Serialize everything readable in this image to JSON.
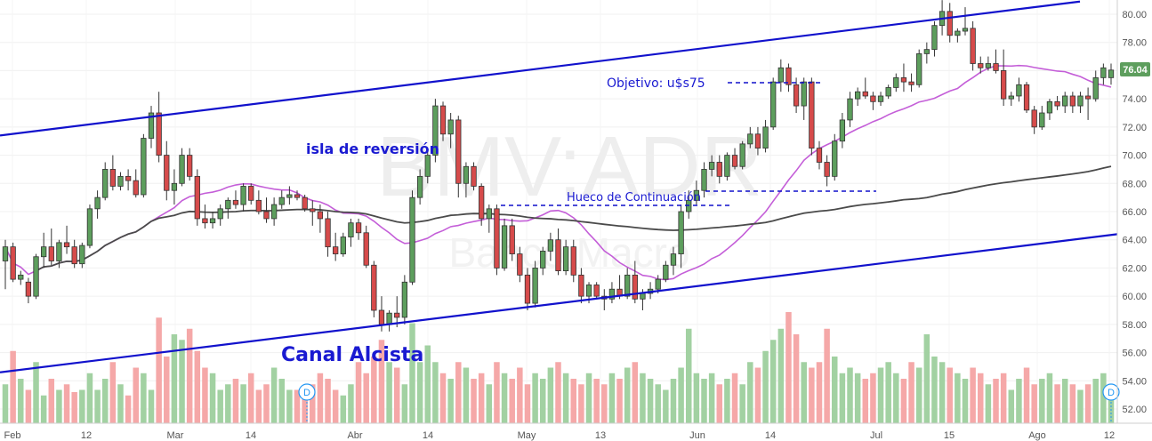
{
  "watermark": {
    "symbol": "BMV:ADR",
    "name": "Banco Macro"
  },
  "chart_data": {
    "type": "candlestick",
    "y_range": [
      51,
      81
    ],
    "y_axis_ticks": [
      52,
      54,
      56,
      58,
      60,
      62,
      64,
      66,
      68,
      70,
      72,
      74,
      76,
      78,
      80
    ],
    "x_axis_ticks": [
      "Feb",
      "12",
      "Mar",
      "14",
      "Abr",
      "14",
      "May",
      "13",
      "Jun",
      "14",
      "Jul",
      "15",
      "Ago",
      "12"
    ],
    "last_price": "76.04",
    "colors": {
      "up": "#5d9e5d",
      "down": "#d64b4b",
      "vol_up": "#9dcf9d",
      "vol_down": "#f4a3a3",
      "ma_fast": "#c45ed8",
      "ma_slow": "#4a4a4a",
      "trend": "#1111cc",
      "last_badge": "#5d9e5d"
    },
    "candles": [
      [
        62.5,
        64.0,
        60.5,
        63.5
      ],
      [
        63.5,
        63.8,
        61.0,
        61.2
      ],
      [
        61.2,
        61.8,
        60.8,
        61.5
      ],
      [
        61.0,
        61.3,
        59.5,
        60.0
      ],
      [
        60.0,
        63.0,
        59.8,
        62.8
      ],
      [
        62.8,
        64.5,
        62.0,
        63.5
      ],
      [
        63.5,
        64.8,
        62.2,
        62.5
      ],
      [
        62.5,
        64.0,
        62.0,
        63.8
      ],
      [
        63.8,
        65.0,
        63.0,
        63.5
      ],
      [
        63.5,
        64.0,
        62.0,
        62.3
      ],
      [
        62.3,
        63.8,
        62.0,
        63.6
      ],
      [
        63.6,
        66.5,
        63.4,
        66.2
      ],
      [
        66.2,
        67.5,
        65.5,
        67.0
      ],
      [
        67.0,
        69.5,
        66.8,
        69.0
      ],
      [
        69.0,
        70.0,
        67.5,
        67.8
      ],
      [
        67.8,
        68.8,
        67.5,
        68.5
      ],
      [
        68.5,
        69.0,
        67.5,
        68.2
      ],
      [
        68.2,
        69.0,
        67.0,
        67.2
      ],
      [
        67.2,
        71.5,
        67.0,
        71.2
      ],
      [
        71.2,
        73.5,
        70.5,
        73.0
      ],
      [
        73.0,
        74.5,
        69.5,
        70.0
      ],
      [
        70.0,
        71.0,
        66.8,
        67.5
      ],
      [
        67.5,
        69.0,
        66.5,
        68.0
      ],
      [
        68.0,
        70.5,
        67.8,
        70.0
      ],
      [
        70.0,
        70.5,
        68.2,
        68.5
      ],
      [
        68.5,
        69.0,
        65.0,
        65.5
      ],
      [
        65.5,
        66.5,
        64.8,
        65.2
      ],
      [
        65.2,
        66.0,
        64.8,
        65.5
      ],
      [
        65.5,
        66.5,
        65.0,
        66.2
      ],
      [
        66.2,
        67.0,
        65.5,
        66.8
      ],
      [
        66.8,
        67.5,
        66.2,
        66.5
      ],
      [
        66.5,
        68.0,
        66.0,
        67.8
      ],
      [
        67.8,
        68.0,
        66.5,
        66.8
      ],
      [
        66.8,
        67.5,
        65.8,
        66.0
      ],
      [
        66.0,
        67.0,
        65.2,
        65.5
      ],
      [
        65.5,
        67.0,
        65.0,
        66.5
      ],
      [
        66.5,
        67.5,
        66.2,
        67.0
      ],
      [
        67.0,
        67.8,
        66.5,
        67.2
      ],
      [
        67.2,
        67.5,
        66.8,
        67.0
      ],
      [
        67.0,
        67.2,
        66.0,
        66.2
      ],
      [
        66.2,
        66.8,
        65.0,
        66.0
      ],
      [
        66.0,
        66.5,
        64.5,
        65.5
      ],
      [
        65.5,
        66.0,
        62.8,
        63.5
      ],
      [
        63.5,
        64.5,
        62.5,
        63.0
      ],
      [
        63.0,
        64.5,
        62.8,
        64.2
      ],
      [
        64.2,
        65.5,
        63.5,
        65.2
      ],
      [
        65.2,
        65.5,
        64.0,
        64.5
      ],
      [
        64.5,
        65.0,
        62.0,
        62.2
      ],
      [
        62.2,
        62.5,
        58.5,
        59.0
      ],
      [
        59.0,
        60.0,
        57.5,
        58.0
      ],
      [
        58.0,
        59.0,
        57.5,
        58.8
      ],
      [
        58.8,
        60.0,
        57.8,
        58.5
      ],
      [
        58.5,
        61.5,
        58.0,
        61.0
      ],
      [
        61.0,
        67.5,
        60.8,
        67.0
      ],
      [
        67.0,
        69.0,
        66.5,
        68.5
      ],
      [
        68.5,
        70.5,
        68.0,
        70.0
      ],
      [
        70.0,
        74.0,
        69.5,
        73.5
      ],
      [
        73.5,
        73.8,
        71.0,
        71.5
      ],
      [
        71.5,
        73.0,
        70.5,
        72.5
      ],
      [
        72.5,
        72.8,
        67.0,
        68.0
      ],
      [
        68.0,
        69.5,
        67.0,
        69.2
      ],
      [
        69.2,
        69.5,
        67.5,
        67.8
      ],
      [
        67.8,
        68.0,
        65.0,
        65.5
      ],
      [
        65.5,
        66.5,
        64.5,
        66.2
      ],
      [
        66.2,
        66.5,
        61.5,
        62.0
      ],
      [
        62.0,
        65.5,
        61.8,
        65.0
      ],
      [
        65.0,
        65.5,
        62.5,
        63.0
      ],
      [
        63.0,
        63.5,
        61.0,
        61.5
      ],
      [
        61.5,
        62.0,
        59.0,
        59.5
      ],
      [
        59.5,
        62.5,
        59.2,
        62.0
      ],
      [
        62.0,
        63.5,
        61.5,
        63.2
      ],
      [
        63.2,
        64.5,
        62.5,
        64.0
      ],
      [
        64.0,
        64.8,
        61.5,
        61.8
      ],
      [
        61.8,
        64.0,
        61.5,
        63.5
      ],
      [
        63.5,
        64.0,
        61.0,
        61.5
      ],
      [
        61.5,
        62.0,
        59.5,
        60.0
      ],
      [
        60.0,
        61.0,
        59.5,
        60.8
      ],
      [
        60.8,
        61.0,
        59.8,
        60.0
      ],
      [
        60.0,
        60.5,
        59.0,
        59.8
      ],
      [
        59.8,
        61.0,
        59.5,
        60.5
      ],
      [
        60.5,
        61.5,
        59.8,
        60.0
      ],
      [
        60.0,
        62.0,
        59.8,
        61.5
      ],
      [
        61.5,
        62.5,
        59.5,
        59.8
      ],
      [
        59.8,
        60.5,
        59.0,
        60.2
      ],
      [
        60.2,
        61.0,
        59.8,
        60.5
      ],
      [
        60.5,
        61.5,
        60.2,
        61.2
      ],
      [
        61.2,
        62.5,
        61.0,
        62.2
      ],
      [
        62.2,
        63.5,
        61.5,
        63.0
      ],
      [
        63.0,
        66.5,
        62.0,
        66.0
      ],
      [
        66.0,
        67.5,
        65.5,
        66.8
      ],
      [
        66.8,
        68.2,
        66.5,
        67.5
      ],
      [
        67.5,
        69.5,
        67.0,
        69.0
      ],
      [
        69.0,
        70.0,
        68.5,
        69.5
      ],
      [
        69.5,
        70.0,
        68.0,
        68.5
      ],
      [
        68.5,
        70.2,
        68.2,
        70.0
      ],
      [
        70.0,
        70.5,
        69.0,
        69.2
      ],
      [
        69.2,
        71.0,
        69.0,
        70.8
      ],
      [
        70.8,
        72.0,
        70.5,
        71.5
      ],
      [
        71.5,
        72.0,
        70.0,
        70.5
      ],
      [
        70.5,
        72.5,
        70.2,
        72.0
      ],
      [
        72.0,
        75.5,
        71.8,
        75.2
      ],
      [
        75.2,
        76.8,
        74.5,
        76.2
      ],
      [
        76.2,
        76.5,
        74.5,
        75.0
      ],
      [
        75.0,
        75.5,
        73.0,
        73.5
      ],
      [
        73.5,
        75.5,
        72.5,
        75.2
      ],
      [
        75.2,
        75.5,
        70.0,
        70.5
      ],
      [
        70.5,
        71.0,
        69.0,
        69.5
      ],
      [
        69.5,
        70.0,
        67.8,
        68.5
      ],
      [
        68.5,
        71.5,
        68.2,
        71.0
      ],
      [
        71.0,
        73.0,
        70.5,
        72.5
      ],
      [
        72.5,
        74.5,
        72.0,
        74.0
      ],
      [
        74.0,
        74.8,
        73.5,
        74.5
      ],
      [
        74.5,
        75.5,
        74.0,
        74.2
      ],
      [
        74.2,
        74.5,
        73.2,
        73.8
      ],
      [
        73.8,
        74.5,
        73.5,
        74.2
      ],
      [
        74.2,
        75.0,
        74.0,
        74.8
      ],
      [
        74.8,
        75.8,
        74.5,
        75.5
      ],
      [
        75.5,
        76.5,
        74.5,
        75.2
      ],
      [
        75.2,
        75.8,
        74.5,
        75.0
      ],
      [
        75.0,
        77.5,
        74.8,
        77.2
      ],
      [
        77.2,
        78.0,
        76.5,
        77.5
      ],
      [
        77.5,
        79.5,
        77.0,
        79.2
      ],
      [
        79.2,
        81.0,
        78.5,
        80.2
      ],
      [
        80.2,
        80.8,
        78.0,
        78.5
      ],
      [
        78.5,
        79.0,
        78.0,
        78.8
      ],
      [
        78.8,
        80.5,
        78.5,
        79.0
      ],
      [
        79.0,
        79.5,
        76.0,
        76.5
      ],
      [
        76.5,
        77.0,
        75.8,
        76.2
      ],
      [
        76.2,
        77.0,
        76.0,
        76.5
      ],
      [
        76.5,
        77.5,
        75.8,
        76.0
      ],
      [
        76.0,
        77.5,
        73.5,
        74.0
      ],
      [
        74.0,
        74.5,
        73.5,
        74.2
      ],
      [
        74.2,
        75.5,
        73.8,
        75.0
      ],
      [
        75.0,
        75.2,
        73.0,
        73.2
      ],
      [
        73.2,
        73.5,
        71.5,
        72.0
      ],
      [
        72.0,
        73.5,
        71.8,
        73.0
      ],
      [
        73.0,
        74.0,
        72.5,
        73.8
      ],
      [
        73.8,
        74.2,
        73.2,
        73.5
      ],
      [
        73.5,
        74.5,
        73.0,
        74.2
      ],
      [
        74.2,
        74.5,
        73.0,
        73.5
      ],
      [
        73.5,
        74.5,
        73.0,
        74.2
      ],
      [
        74.2,
        74.8,
        72.5,
        74.0
      ],
      [
        74.0,
        76.0,
        73.8,
        75.5
      ],
      [
        75.5,
        76.5,
        75.0,
        76.2
      ],
      [
        75.5,
        76.5,
        75.0,
        76.04
      ]
    ],
    "volume": [
      0.35,
      0.65,
      0.4,
      0.3,
      0.55,
      0.25,
      0.4,
      0.3,
      0.35,
      0.28,
      0.3,
      0.45,
      0.3,
      0.4,
      0.55,
      0.35,
      0.25,
      0.5,
      0.45,
      0.3,
      0.95,
      0.6,
      0.8,
      0.75,
      0.85,
      0.65,
      0.5,
      0.45,
      0.3,
      0.35,
      0.4,
      0.35,
      0.45,
      0.3,
      0.35,
      0.5,
      0.4,
      0.3,
      0.3,
      0.25,
      0.35,
      0.45,
      0.4,
      0.3,
      0.25,
      0.35,
      0.55,
      0.45,
      0.6,
      0.75,
      0.55,
      0.5,
      0.35,
      0.9,
      0.55,
      0.7,
      0.55,
      0.45,
      0.4,
      0.55,
      0.5,
      0.4,
      0.45,
      0.35,
      0.55,
      0.45,
      0.4,
      0.5,
      0.35,
      0.45,
      0.4,
      0.5,
      0.55,
      0.45,
      0.4,
      0.35,
      0.45,
      0.4,
      0.35,
      0.45,
      0.4,
      0.5,
      0.55,
      0.45,
      0.4,
      0.35,
      0.3,
      0.4,
      0.5,
      0.85,
      0.45,
      0.4,
      0.45,
      0.35,
      0.4,
      0.45,
      0.35,
      0.55,
      0.5,
      0.65,
      0.75,
      0.85,
      1.0,
      0.8,
      0.55,
      0.5,
      0.55,
      0.85,
      0.6,
      0.45,
      0.5,
      0.45,
      0.4,
      0.45,
      0.5,
      0.55,
      0.45,
      0.4,
      0.55,
      0.5,
      0.8,
      0.6,
      0.55,
      0.5,
      0.45,
      0.4,
      0.5,
      0.45,
      0.35,
      0.4,
      0.45,
      0.3,
      0.4,
      0.5,
      0.35,
      0.4,
      0.45,
      0.35,
      0.4,
      0.35,
      0.3,
      0.35,
      0.4,
      0.45,
      0.35
    ],
    "trendlines": [
      {
        "from": [
          "Feb",
          71.4
        ],
        "to": [
          "Ago",
          80.9
        ]
      },
      {
        "from": [
          "Feb",
          54.6
        ],
        "to": [
          "12",
          64.4
        ]
      }
    ],
    "annotations": {
      "channel": "Canal Alcista",
      "island": "isla de reversión",
      "gap": "Hueco de Continuación",
      "target": "Objetivo: u$s75"
    },
    "dividend_markers": [
      "D",
      "D"
    ]
  }
}
